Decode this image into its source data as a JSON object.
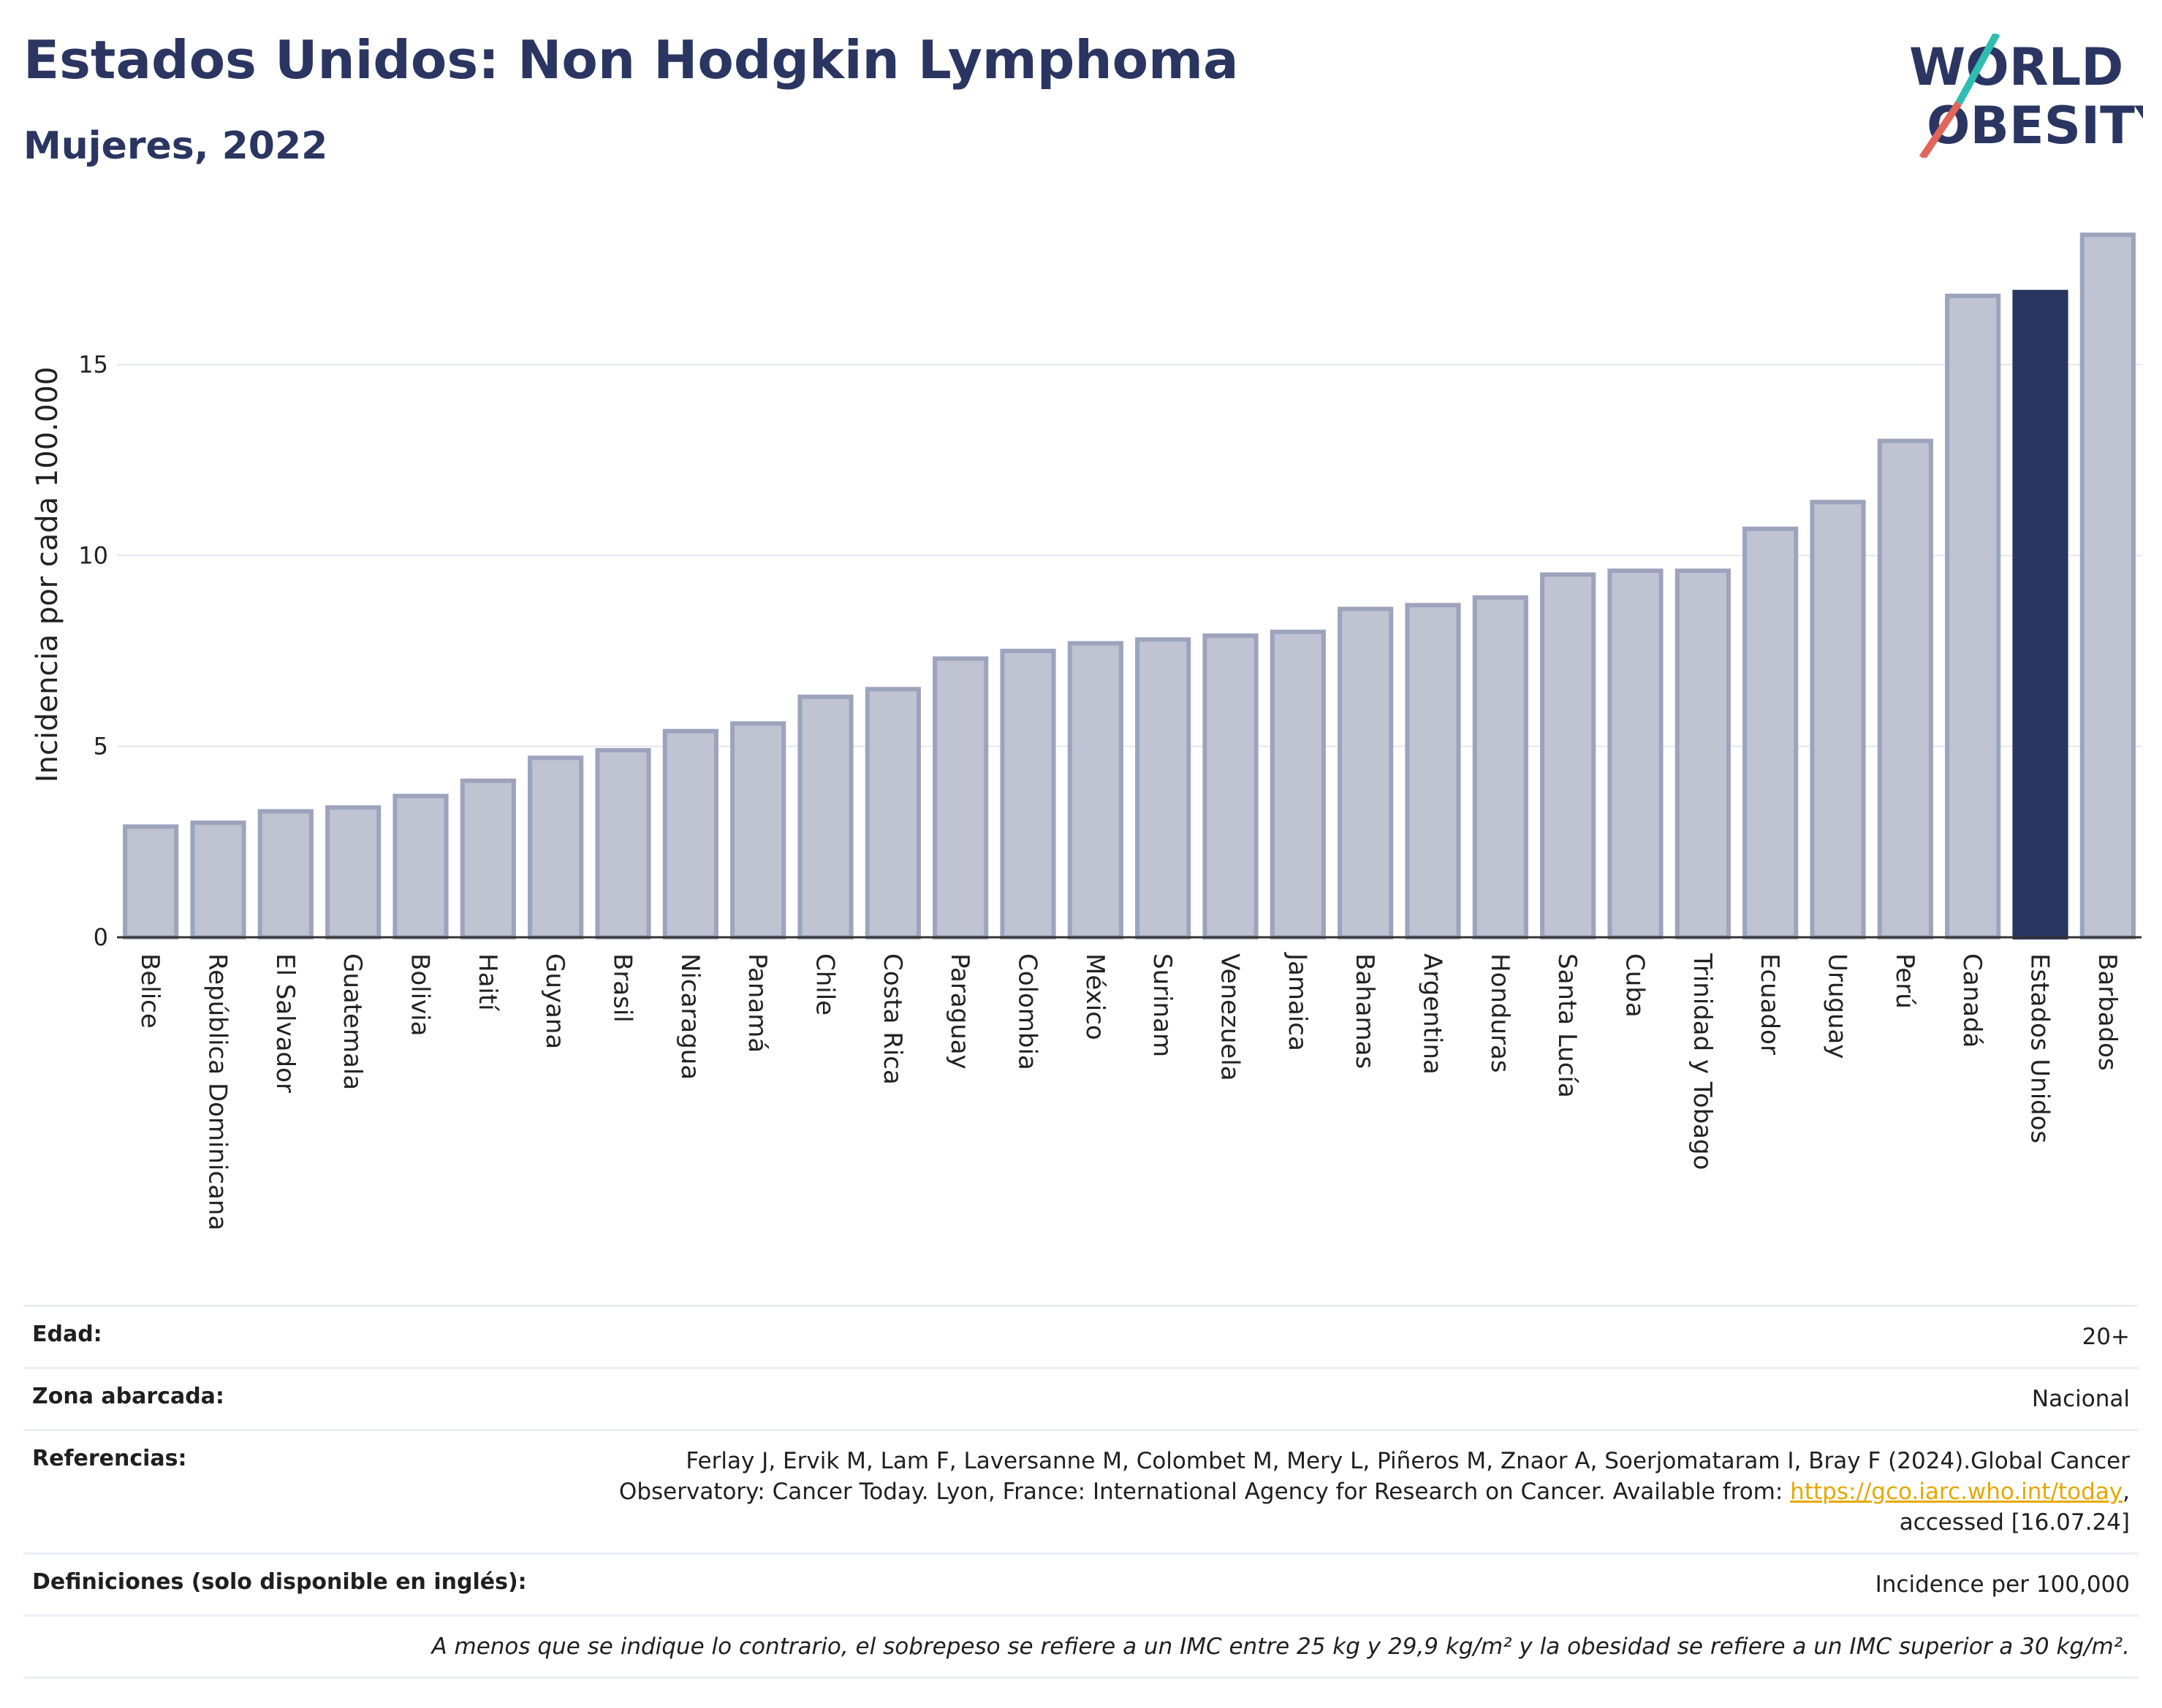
{
  "header": {
    "title": "Estados Unidos: Non Hodgkin Lymphoma",
    "subtitle": "Mujeres, 2022",
    "logo_line1": "WORLD",
    "logo_line2": "OBESITY"
  },
  "colors": {
    "bar": "#bfc3d2",
    "bar_border": "#9ea3bd",
    "highlight": "#2b3561",
    "title": "#2b3561",
    "logo_slash_teal": "#2fbdb2",
    "logo_slash_red": "#e0665a",
    "link": "#e6a800"
  },
  "chart_data": {
    "type": "bar",
    "ylabel": "Incidencia por cada 100.000",
    "xlabel": "",
    "ylim": [
      0,
      19
    ],
    "yticks": [
      0,
      5,
      10,
      15
    ],
    "grid": true,
    "highlight": "Estados Unidos",
    "categories": [
      "Belice",
      "República Dominicana",
      "El Salvador",
      "Guatemala",
      "Bolivia",
      "Haití",
      "Guyana",
      "Brasil",
      "Nicaragua",
      "Panamá",
      "Chile",
      "Costa Rica",
      "Paraguay",
      "Colombia",
      "México",
      "Surinam",
      "Venezuela",
      "Jamaica",
      "Bahamas",
      "Argentina",
      "Honduras",
      "Santa Lucía",
      "Cuba",
      "Trinidad y Tobago",
      "Ecuador",
      "Uruguay",
      "Perú",
      "Canadá",
      "Estados Unidos",
      "Barbados"
    ],
    "values": [
      2.9,
      3.0,
      3.3,
      3.4,
      3.7,
      4.1,
      4.7,
      4.9,
      5.4,
      5.6,
      6.3,
      6.5,
      7.3,
      7.5,
      7.7,
      7.8,
      7.9,
      8.0,
      8.6,
      8.7,
      8.9,
      9.5,
      9.6,
      9.6,
      10.7,
      11.4,
      13.0,
      16.8,
      16.9,
      18.4
    ]
  },
  "info": {
    "edad_label": "Edad:",
    "edad_value": "20+",
    "zona_label": "Zona abarcada:",
    "zona_value": "Nacional",
    "ref_label": "Referencias:",
    "ref_line1": "Ferlay J, Ervik M, Lam F, Laversanne M, Colombet M, Mery L, Piñeros M, Znaor A, Soerjomataram I, Bray F (2024).Global Cancer",
    "ref_line2_pre": "Observatory: Cancer Today. Lyon, France: International Agency for Research on Cancer. Available from: ",
    "ref_link": "https://gco.iarc.who.int/today",
    "ref_line2_post": ",",
    "ref_line3": "accessed [16.07.24]",
    "def_label": "Definiciones (solo disponible en inglés):",
    "def_value": "Incidence per 100,000",
    "note": "A menos que se indique lo contrario, el sobrepeso se refiere a un IMC entre 25 kg y 29,9 kg/m² y la obesidad se refiere a un IMC superior a 30 kg/m²."
  }
}
